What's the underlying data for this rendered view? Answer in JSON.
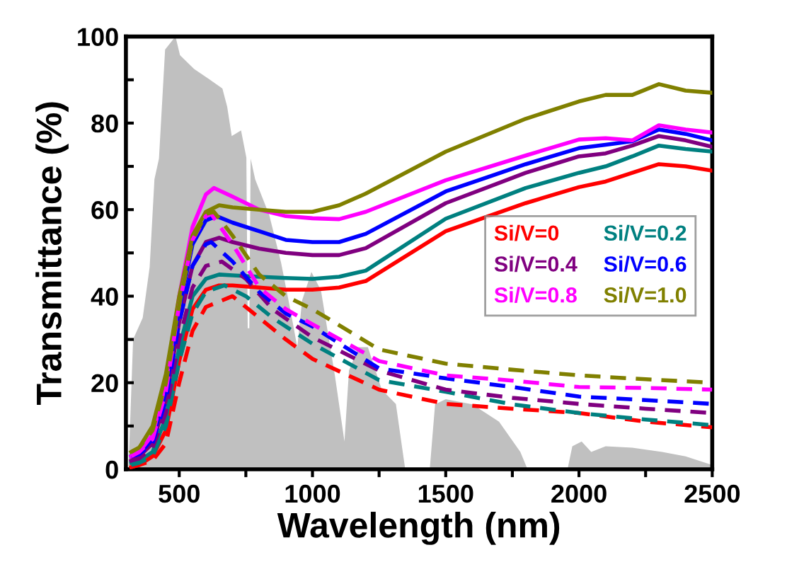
{
  "chart_data": {
    "type": "line",
    "xlabel": "Wavelength (nm)",
    "ylabel": "Transmittance (%)",
    "xlim": [
      300,
      2500
    ],
    "ylim": [
      0,
      100
    ],
    "xticks": [
      500,
      {
        "value": 750,
        "label": null
      },
      1000,
      {
        "value": 1250,
        "label": null
      },
      1500,
      {
        "value": 1750,
        "label": null
      },
      2000,
      {
        "value": 2250,
        "label": null
      },
      2500
    ],
    "yticks": [
      0,
      {
        "value": 10,
        "label": null
      },
      20,
      {
        "value": 30,
        "label": null
      },
      40,
      {
        "value": 50,
        "label": null
      },
      60,
      {
        "value": 70,
        "label": null
      },
      80,
      {
        "value": 90,
        "label": null
      },
      100
    ],
    "grid": false,
    "legend": "right",
    "marker": "none",
    "series": [
      {
        "type": "area",
        "color": "#c0c0c0",
        "x": [
          310,
          327,
          363,
          389,
          407,
          424,
          447,
          486,
          503,
          556,
          609,
          662,
          680,
          697,
          732,
          752,
          757,
          763,
          768,
          785,
          838,
          882,
          917,
          943,
          961,
          996,
          1032,
          1084,
          1120,
          1137,
          1172,
          1208,
          1260,
          1313,
          1348,
          1360,
          1440,
          1460,
          1500,
          1600,
          1700,
          1780,
          1807,
          1957,
          1975,
          2010,
          2046,
          2100,
          2200,
          2312,
          2400,
          2500
        ],
        "values": [
          1,
          30,
          35,
          46.7,
          67,
          71.8,
          97,
          100,
          95.7,
          92.5,
          90.3,
          88,
          83.8,
          77,
          78.3,
          72,
          32.6,
          32.6,
          71.8,
          67,
          58.7,
          47.8,
          36.9,
          28.2,
          39,
          45.6,
          41.3,
          21.7,
          6.4,
          22.8,
          28.2,
          28.2,
          18.4,
          15.1,
          0,
          0,
          0,
          15,
          16.2,
          15,
          11,
          4,
          0,
          0,
          5.3,
          6.4,
          4,
          5.3,
          5,
          4,
          3,
          1
        ]
      },
      {
        "name": "Si/V=0",
        "color": "#ff0000",
        "line_style": "solid",
        "x": [
          320,
          350,
          400,
          450,
          500,
          550,
          600,
          650,
          700,
          800,
          900,
          1000,
          1100,
          1200,
          1500,
          1800,
          2000,
          2100,
          2200,
          2300,
          2400,
          2500
        ],
        "values": [
          0.5,
          1,
          3,
          9,
          25,
          37,
          41.5,
          42.5,
          42.5,
          42,
          41.5,
          41.5,
          42,
          43.5,
          55,
          61.5,
          65.2,
          66.5,
          68.5,
          70.5,
          70,
          69
        ]
      },
      {
        "name": "Si/V=0.2",
        "color": "#008080",
        "line_style": "solid",
        "x": [
          320,
          350,
          400,
          450,
          500,
          550,
          600,
          650,
          700,
          800,
          900,
          1000,
          1100,
          1200,
          1500,
          1800,
          2000,
          2100,
          2200,
          2300,
          2400,
          2500
        ],
        "values": [
          1.5,
          2,
          4,
          12,
          28,
          40,
          44,
          45,
          44.8,
          44.5,
          44.2,
          44,
          44.5,
          45.9,
          57.9,
          65,
          68.5,
          70,
          72.3,
          74.8,
          74,
          73.4
        ]
      },
      {
        "name": "Si/V=0.4",
        "color": "#800080",
        "line_style": "solid",
        "x": [
          320,
          350,
          400,
          450,
          500,
          550,
          600,
          650,
          700,
          800,
          900,
          1000,
          1100,
          1200,
          1500,
          1800,
          2000,
          2100,
          2200,
          2300,
          2400,
          2500
        ],
        "values": [
          2,
          3,
          6,
          16,
          34,
          47,
          52.5,
          53.5,
          52.5,
          51,
          50,
          49.5,
          49.5,
          51.1,
          61.5,
          68.5,
          72.3,
          73,
          74.8,
          77,
          76,
          74.5
        ]
      },
      {
        "name": "Si/V=0.6",
        "color": "#0000ff",
        "line_style": "solid",
        "x": [
          320,
          350,
          400,
          450,
          500,
          550,
          600,
          640,
          700,
          800,
          900,
          1000,
          1100,
          1200,
          1500,
          1800,
          2000,
          2100,
          2200,
          2300,
          2400,
          2500
        ],
        "values": [
          3,
          3.5,
          7,
          18,
          37,
          52,
          57.5,
          58.5,
          57,
          55,
          53,
          52.5,
          52.5,
          54.4,
          64.2,
          70.5,
          74.2,
          75,
          75.8,
          78.5,
          77.5,
          76
        ]
      },
      {
        "name": "Si/V=0.8",
        "color": "#ff00ff",
        "line_style": "solid",
        "x": [
          320,
          350,
          400,
          450,
          500,
          550,
          600,
          630,
          700,
          800,
          900,
          1000,
          1100,
          1200,
          1500,
          1800,
          2000,
          2100,
          2200,
          2300,
          2400,
          2500
        ],
        "values": [
          3,
          4,
          8,
          20,
          40,
          56,
          63.5,
          65,
          63,
          60,
          58.5,
          58,
          57.8,
          59.5,
          66.8,
          72.5,
          76.2,
          76.5,
          76,
          79.5,
          78.5,
          77.8
        ]
      },
      {
        "name": "Si/V=1.0",
        "color": "#808000",
        "line_style": "solid",
        "x": [
          320,
          350,
          400,
          450,
          500,
          550,
          600,
          650,
          700,
          800,
          900,
          1000,
          1100,
          1200,
          1500,
          1800,
          2000,
          2100,
          2200,
          2300,
          2400,
          2500
        ],
        "values": [
          4,
          5,
          10,
          22,
          40,
          54,
          59.5,
          61,
          60.5,
          60,
          59.5,
          59.5,
          61,
          63.7,
          73.4,
          81,
          85,
          86.5,
          86.5,
          89,
          87.5,
          87
        ]
      },
      {
        "color": "#ff0000",
        "line_style": "dashed",
        "x": [
          320,
          350,
          400,
          450,
          500,
          550,
          600,
          700,
          780,
          900,
          1000,
          1250,
          1500,
          1750,
          2000,
          2250,
          2500
        ],
        "values": [
          0.5,
          1,
          2,
          6,
          20,
          32,
          37.5,
          40,
          36,
          30,
          25.5,
          18.4,
          15.1,
          14,
          13,
          11,
          9.7
        ]
      },
      {
        "color": "#008080",
        "line_style": "dashed",
        "x": [
          320,
          350,
          400,
          450,
          500,
          550,
          600,
          670,
          750,
          850,
          1000,
          1250,
          1500,
          1750,
          2000,
          2250,
          2500
        ],
        "values": [
          1,
          1.5,
          3,
          10,
          25,
          36,
          41,
          42.5,
          40,
          35,
          29,
          20.6,
          17.9,
          15,
          13,
          11.5,
          10.2
        ]
      },
      {
        "color": "#800080",
        "line_style": "dashed",
        "x": [
          320,
          350,
          400,
          450,
          500,
          550,
          600,
          660,
          750,
          850,
          1000,
          1250,
          1500,
          1750,
          2000,
          2250,
          2500
        ],
        "values": [
          2,
          2.5,
          5,
          13,
          30,
          42,
          47,
          48,
          44,
          37,
          30.5,
          22.8,
          18.4,
          16.5,
          15.1,
          14,
          13
        ]
      },
      {
        "color": "#0000ff",
        "line_style": "dashed",
        "x": [
          320,
          350,
          400,
          450,
          500,
          550,
          600,
          620,
          700,
          800,
          900,
          1000,
          1250,
          1500,
          1750,
          2000,
          2250,
          2500
        ],
        "values": [
          3,
          3.5,
          6,
          16,
          34,
          47,
          52,
          52.5,
          48,
          41,
          36,
          33,
          23.3,
          21,
          19,
          16.8,
          16,
          15.1
        ]
      },
      {
        "color": "#ff00ff",
        "line_style": "dashed",
        "x": [
          320,
          350,
          400,
          450,
          500,
          550,
          600,
          620,
          700,
          800,
          900,
          1000,
          1250,
          1500,
          1750,
          2000,
          2250,
          2500
        ],
        "values": [
          3,
          4,
          7,
          18,
          38,
          53,
          58.5,
          59,
          52,
          42,
          37,
          33.5,
          25,
          21.7,
          20.5,
          19,
          18.8,
          18.4
        ]
      },
      {
        "color": "#808000",
        "line_style": "dashed",
        "x": [
          320,
          350,
          400,
          450,
          500,
          550,
          600,
          630,
          700,
          800,
          900,
          1000,
          1250,
          1500,
          1750,
          2000,
          2250,
          2500
        ],
        "values": [
          4,
          5,
          9,
          20,
          38,
          53,
          59,
          59.5,
          54,
          45,
          40,
          37,
          27.7,
          24.4,
          23,
          21.7,
          20.8,
          20
        ]
      }
    ]
  }
}
